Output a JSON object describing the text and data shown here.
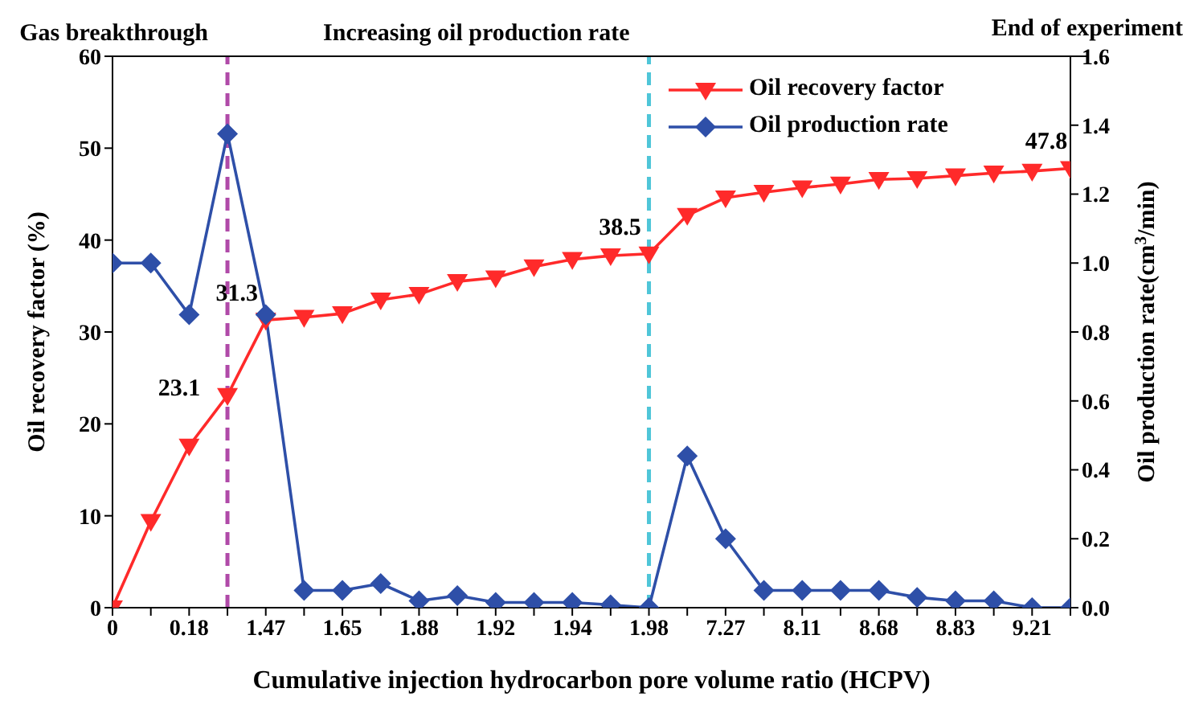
{
  "chart_data": {
    "type": "line",
    "xlabel": "Cumulative injection hydrocarbon pore volume ratio (HCPV)",
    "ylabel": "Oil recovery factor (%)",
    "y2label": "Oil production rate(cm$^{3}$/min)",
    "categories": [
      "0",
      null,
      "0.18",
      null,
      "1.47",
      null,
      "1.65",
      null,
      "1.88",
      null,
      "1.92",
      null,
      "1.94",
      null,
      "1.98",
      null,
      "7.27",
      null,
      "8.11",
      null,
      "8.68",
      null,
      "8.83",
      null,
      "9.21",
      null
    ],
    "series": [
      {
        "name": "Oil recovery factor",
        "color": "#ff2a2a",
        "marker": "triangle",
        "values": [
          0,
          9.4,
          17.6,
          23.1,
          31.3,
          31.6,
          32.0,
          33.5,
          34.1,
          35.5,
          35.9,
          37.1,
          37.9,
          38.3,
          38.5,
          42.7,
          44.6,
          45.2,
          45.7,
          46.1,
          46.6,
          46.7,
          47.0,
          47.3,
          47.5,
          47.8
        ],
        "value_labels": [
          null,
          null,
          null,
          "23.1",
          "31.3",
          null,
          null,
          null,
          null,
          null,
          null,
          null,
          null,
          null,
          "38.5",
          null,
          null,
          null,
          null,
          null,
          null,
          null,
          null,
          null,
          null,
          "47.8"
        ]
      },
      {
        "name": "Oil production rate",
        "color": "#2e4fa8",
        "marker": "diamond",
        "axis": "y2",
        "values": [
          1.0,
          1.0,
          0.85,
          1.375,
          0.85,
          0.05,
          0.05,
          0.07,
          0.02,
          0.035,
          0.015,
          0.015,
          0.015,
          0.008,
          0,
          0.44,
          0.2,
          0.05,
          0.05,
          0.05,
          0.05,
          0.03,
          0.02,
          0.02,
          0,
          0
        ]
      }
    ],
    "ylim": [
      0,
      60
    ],
    "yticks": [
      0,
      10,
      20,
      30,
      40,
      50,
      60
    ],
    "y2lim": [
      0,
      1.6
    ],
    "y2ticks": [
      {
        "value": 0,
        "label": "0.0"
      },
      0.2,
      0.4,
      0.6,
      0.8,
      {
        "value": 1,
        "label": "1.0"
      },
      1.2,
      1.4,
      1.6
    ],
    "ref_lines": [
      {
        "axis": "x",
        "label": "Gas breakthrough",
        "color": "#b04aa8",
        "line_style": "dashed"
      },
      {
        "axis": "x",
        "value": "1.98",
        "label": "Increasing oil production rate",
        "color": "#4fc6d8",
        "line_style": "dashed"
      }
    ],
    "annotations": [
      "End of experiment"
    ],
    "legend": "top right",
    "grid": false,
    "line_style": "solid"
  }
}
